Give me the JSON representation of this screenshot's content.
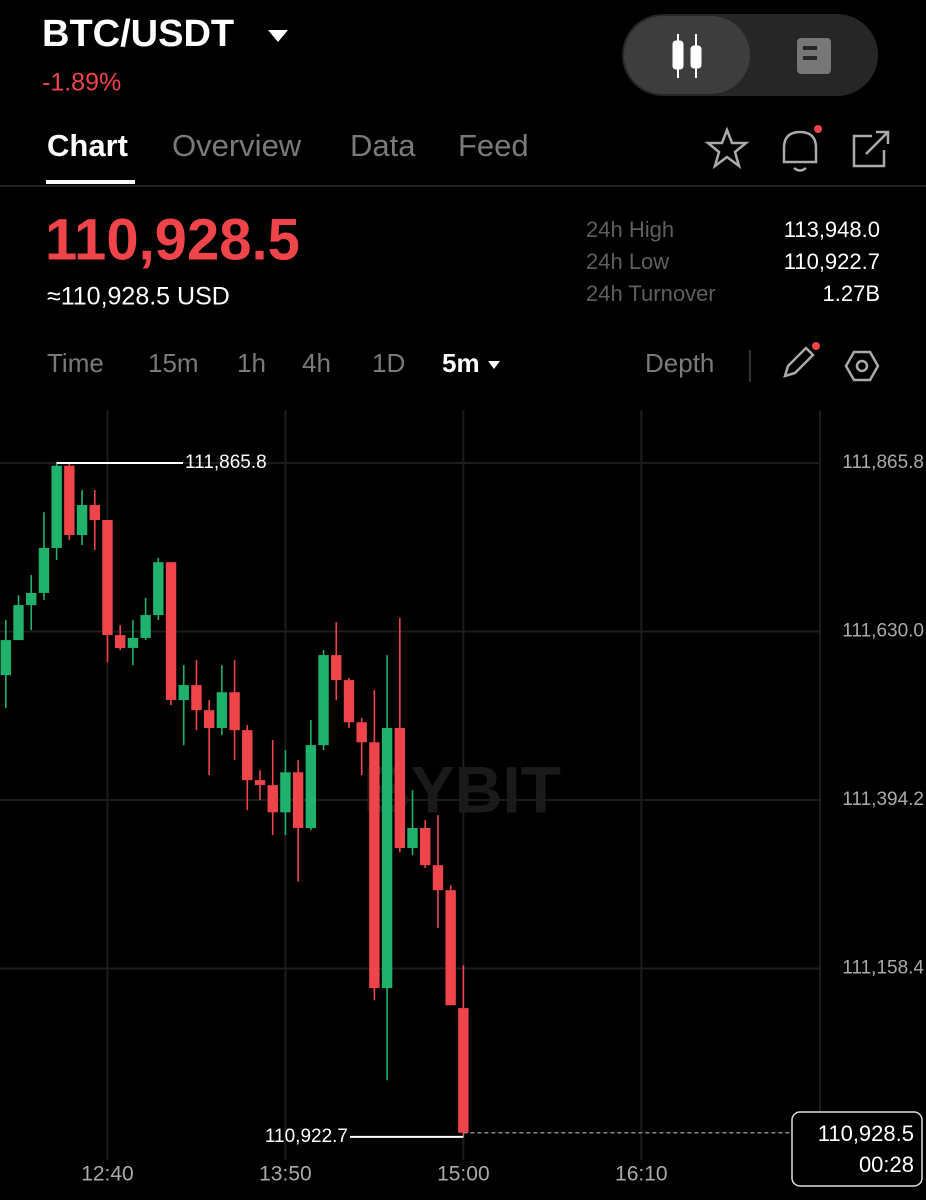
{
  "header": {
    "symbol": "BTC/USDT",
    "change": "-1.89%"
  },
  "tabs": [
    "Chart",
    "Overview",
    "Data",
    "Feed"
  ],
  "price": {
    "last": "110,928.5",
    "usd": "≈110,928.5 USD"
  },
  "stats": [
    {
      "label": "24h High",
      "value": "113,948.0"
    },
    {
      "label": "24h Low",
      "value": "110,922.7"
    },
    {
      "label": "24h Turnover",
      "value": "1.27B"
    }
  ],
  "intervals": [
    "Time",
    "15m",
    "1h",
    "4h",
    "1D",
    "5m"
  ],
  "depth": "Depth",
  "chart_data": {
    "type": "candlestick",
    "categories": [
      null,
      null,
      null,
      null,
      null,
      null,
      null,
      null,
      "12:40",
      null,
      null,
      null,
      null,
      null,
      null,
      null,
      null,
      null,
      null,
      null,
      null,
      null,
      "13:50",
      null,
      null,
      null,
      null,
      null,
      null,
      null,
      null,
      null,
      null,
      null,
      null,
      null,
      "15:00",
      null,
      null,
      null,
      null,
      null,
      null,
      null,
      null,
      null,
      null,
      null,
      null,
      null,
      "16:10"
    ],
    "open": [
      111569,
      111618,
      111667,
      111684,
      111747,
      111862,
      111765,
      111807,
      111786,
      111625,
      111607,
      111621,
      111653,
      111727,
      111534,
      111555,
      111520,
      111495,
      111545,
      111492,
      111422,
      111415,
      111377,
      111433,
      111355,
      111471,
      111597,
      111562,
      111503,
      111475,
      111131,
      111495,
      111327,
      111355,
      111303,
      111268,
      111103,
      null,
      null,
      null,
      null,
      null,
      null,
      null,
      null,
      null,
      null,
      null,
      null,
      null,
      null
    ],
    "high": [
      111646,
      111681,
      111709,
      111797,
      111865.8,
      111865.8,
      111828,
      111828,
      111786,
      111639,
      111646,
      111677,
      111733,
      111727,
      111583,
      111590,
      111534,
      111583,
      111590,
      111499,
      111436,
      111478,
      111464,
      111450,
      111506,
      111604,
      111643,
      111565,
      111509,
      111548,
      111597,
      111649,
      111408,
      111366,
      111373,
      111275,
      111163,
      null,
      null,
      null,
      null,
      null,
      null,
      null,
      null,
      null,
      null,
      null,
      null,
      null,
      null
    ],
    "low": [
      111523,
      111618,
      111632,
      111674,
      111730,
      111758,
      111751,
      111744,
      111587,
      111604,
      111583,
      111618,
      111646,
      111527,
      111471,
      111492,
      111429,
      111485,
      111450,
      111380,
      111394,
      111345,
      111345,
      111280,
      111352,
      111464,
      111534,
      111495,
      111429,
      111114,
      111002,
      111321,
      111317,
      111299,
      111215,
      111107,
      110922.7,
      null,
      null,
      null,
      null,
      null,
      null,
      null,
      null,
      null,
      null,
      null,
      null,
      null,
      null
    ],
    "close": [
      111618,
      111667,
      111684,
      111747,
      111862,
      111765,
      111807,
      111786,
      111625,
      111607,
      111621,
      111653,
      111727,
      111534,
      111555,
      111520,
      111495,
      111545,
      111492,
      111422,
      111415,
      111377,
      111433,
      111355,
      111471,
      111597,
      111562,
      111503,
      111475,
      111131,
      111495,
      111327,
      111355,
      111303,
      111268,
      111107,
      110928.5,
      null,
      null,
      null,
      null,
      null,
      null,
      null,
      null,
      null,
      null,
      null,
      null,
      null,
      null
    ],
    "up_color": "#20b26c",
    "down_color": "#ef454a",
    "ylim": [
      110904.4,
      111933.0
    ],
    "yticks": [
      {
        "value": 111865.8,
        "label": "111,865.8"
      },
      {
        "value": 111630.0,
        "label": "111,630.0"
      },
      {
        "value": 111394.2,
        "label": "111,394.2"
      },
      {
        "value": 111158.4,
        "label": "111,158.4"
      }
    ],
    "grid": true,
    "max_marker": {
      "value": 111865.8,
      "label": "111,865.8"
    },
    "min_marker": {
      "value": 110922.7,
      "label": "110,922.7"
    },
    "last_price": {
      "value": 110928.5,
      "label": "110,928.5"
    },
    "countdown": "00:28",
    "watermark": "BYBIT"
  }
}
